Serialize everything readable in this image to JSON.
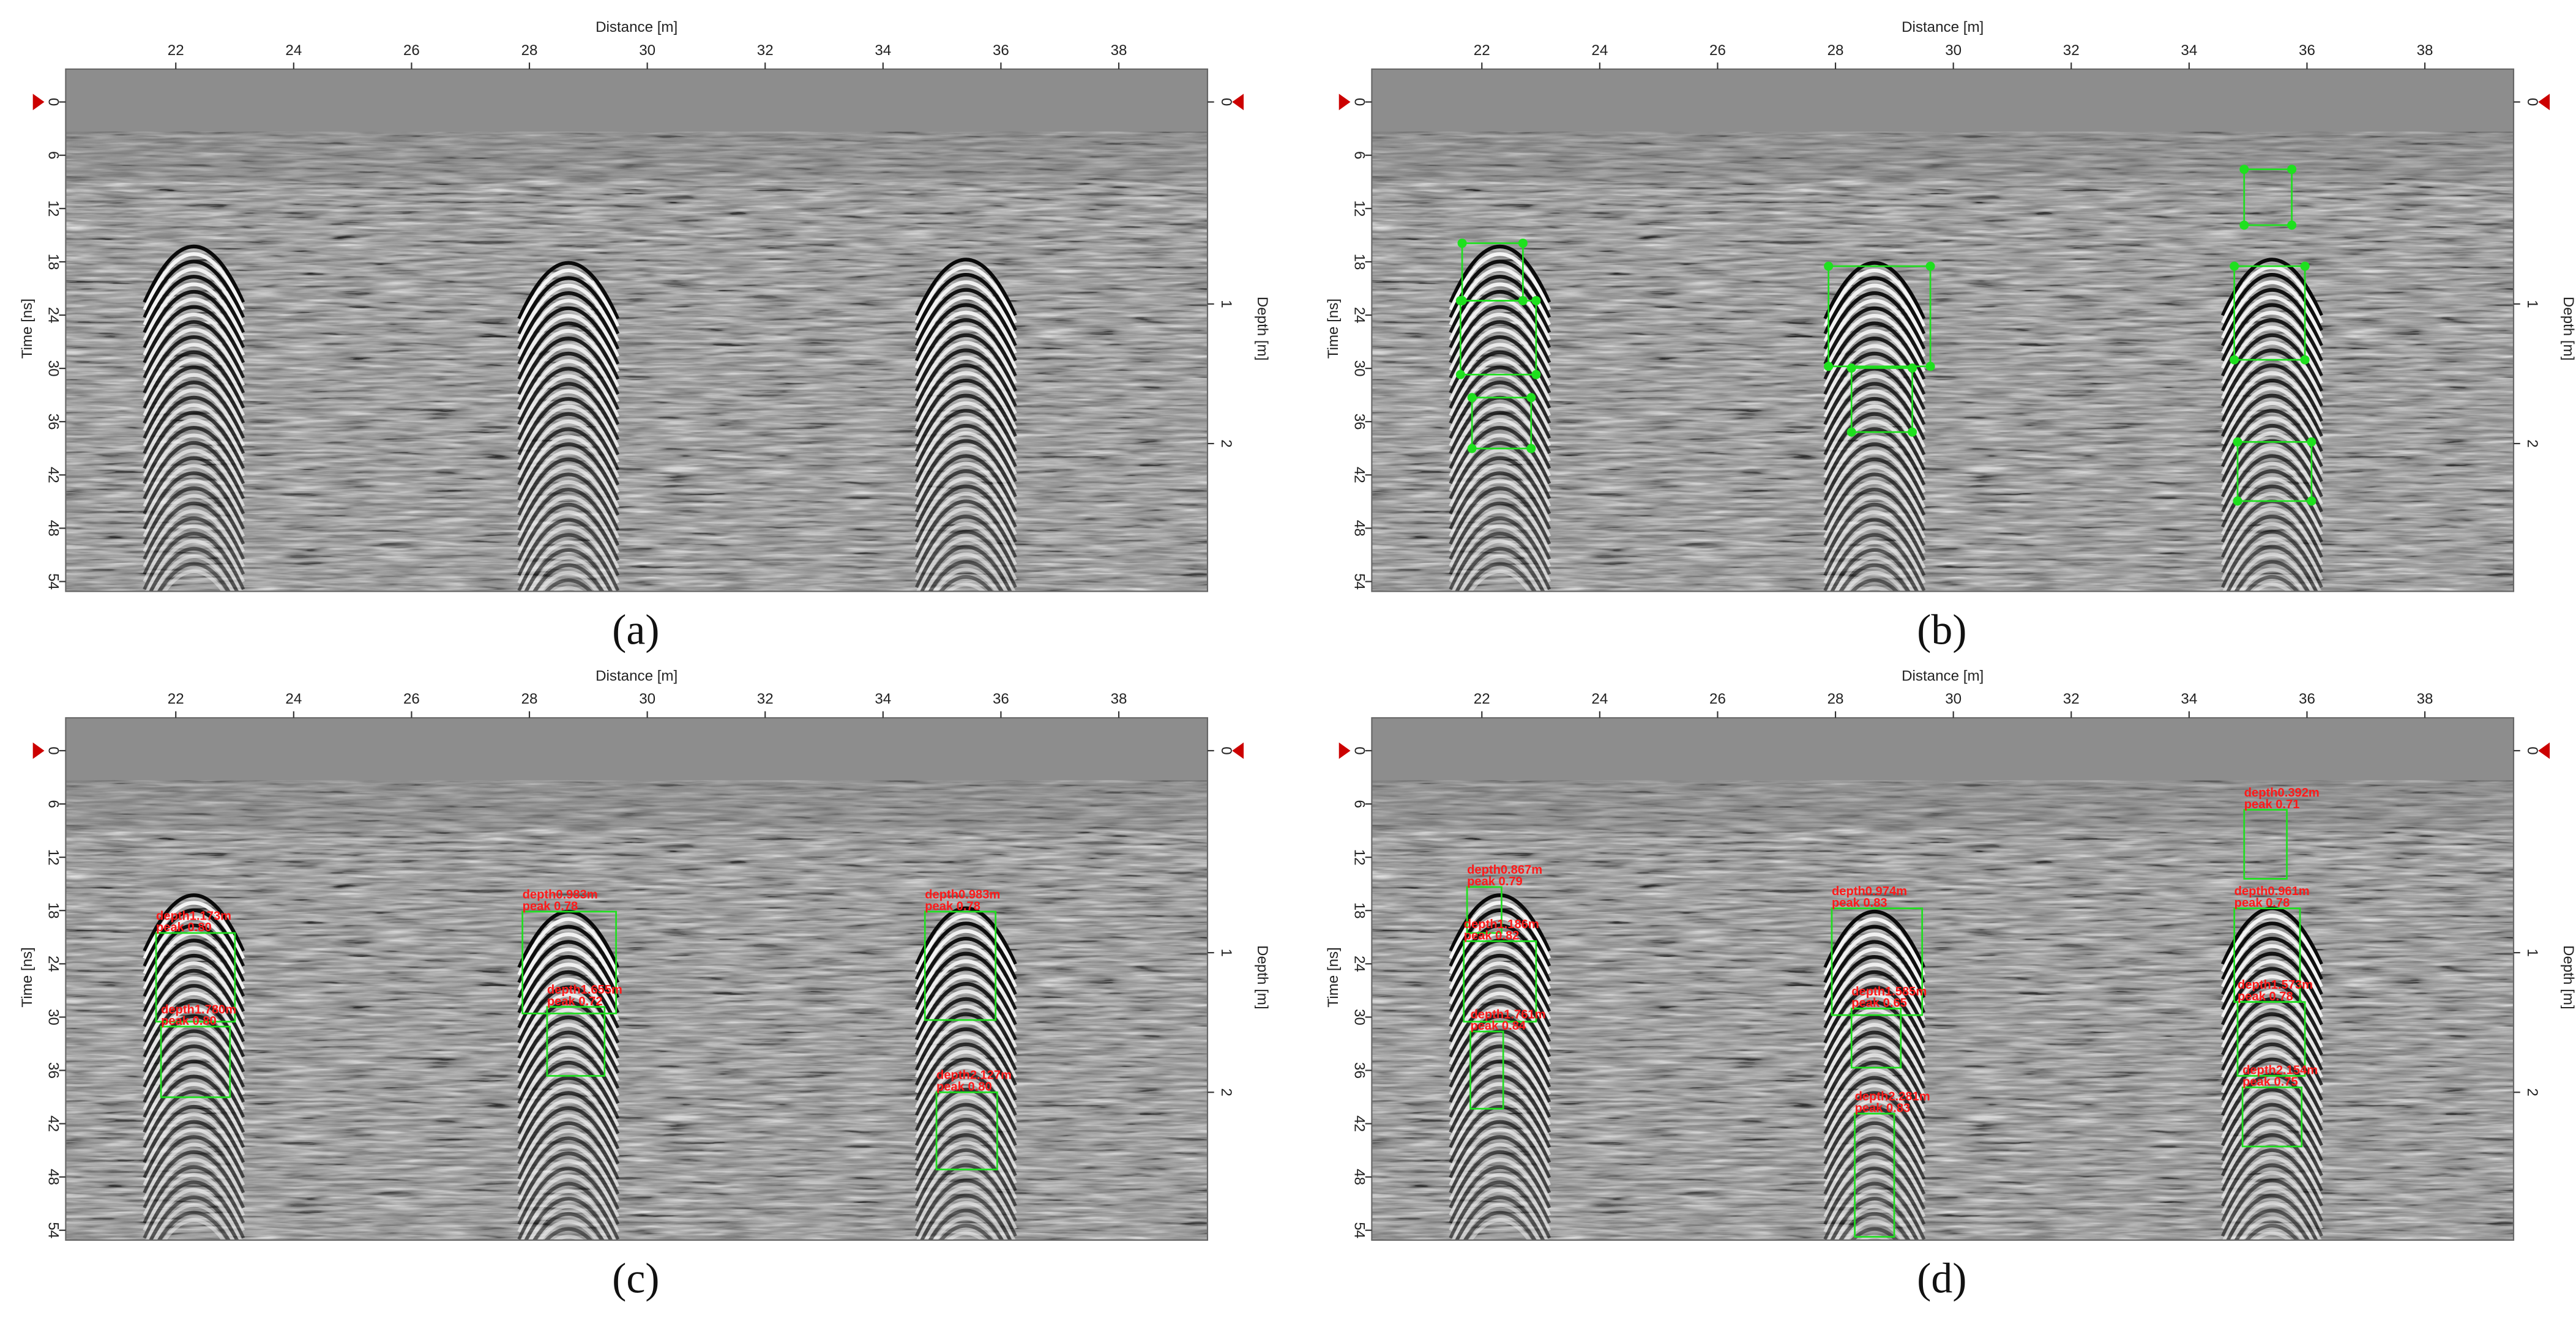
{
  "axes": {
    "x_title": "Distance [m]",
    "x_ticks": [
      22,
      24,
      26,
      28,
      30,
      32,
      34,
      36,
      38
    ],
    "y_title": "Time [ns]",
    "y_ticks": [
      0,
      6,
      12,
      18,
      24,
      30,
      36,
      42,
      48,
      54
    ],
    "y2_title": "Depth [m]",
    "y2_ticks": [
      0,
      1,
      2
    ]
  },
  "panels": [
    {
      "label": "(a)"
    },
    {
      "label": "(b)"
    },
    {
      "label": "(c)",
      "detections": [
        {
          "depth": "depth1.173m",
          "peak": "peak 0.80"
        },
        {
          "depth": "depth1.780m",
          "peak": "peak 0.80"
        },
        {
          "depth": "depth0.983m",
          "peak": "peak 0.78"
        },
        {
          "depth": "depth1.655m",
          "peak": "peak 0.72"
        },
        {
          "depth": "depth0.983m",
          "peak": "peak 0.78"
        },
        {
          "depth": "depth2.127m",
          "peak": "peak 0.80"
        }
      ]
    },
    {
      "label": "(d)",
      "detections": [
        {
          "depth": "depth0.867m",
          "peak": "peak 0.79"
        },
        {
          "depth": "depth1.186m",
          "peak": "peak 0.82"
        },
        {
          "depth": "depth1.761m",
          "peak": "peak 0.84"
        },
        {
          "depth": "depth0.974m",
          "peak": "peak 0.83"
        },
        {
          "depth": "depth1.585m",
          "peak": "peak 0.65"
        },
        {
          "depth": "depth2.281m",
          "peak": "peak 0.83"
        },
        {
          "depth": "depth0.392m",
          "peak": "peak 0.71"
        },
        {
          "depth": "depth0.961m",
          "peak": "peak 0.78"
        },
        {
          "depth": "depth1.573m",
          "peak": "peak 0.78"
        },
        {
          "depth": "depth2.154m",
          "peak": "peak 0.75"
        }
      ]
    }
  ]
}
